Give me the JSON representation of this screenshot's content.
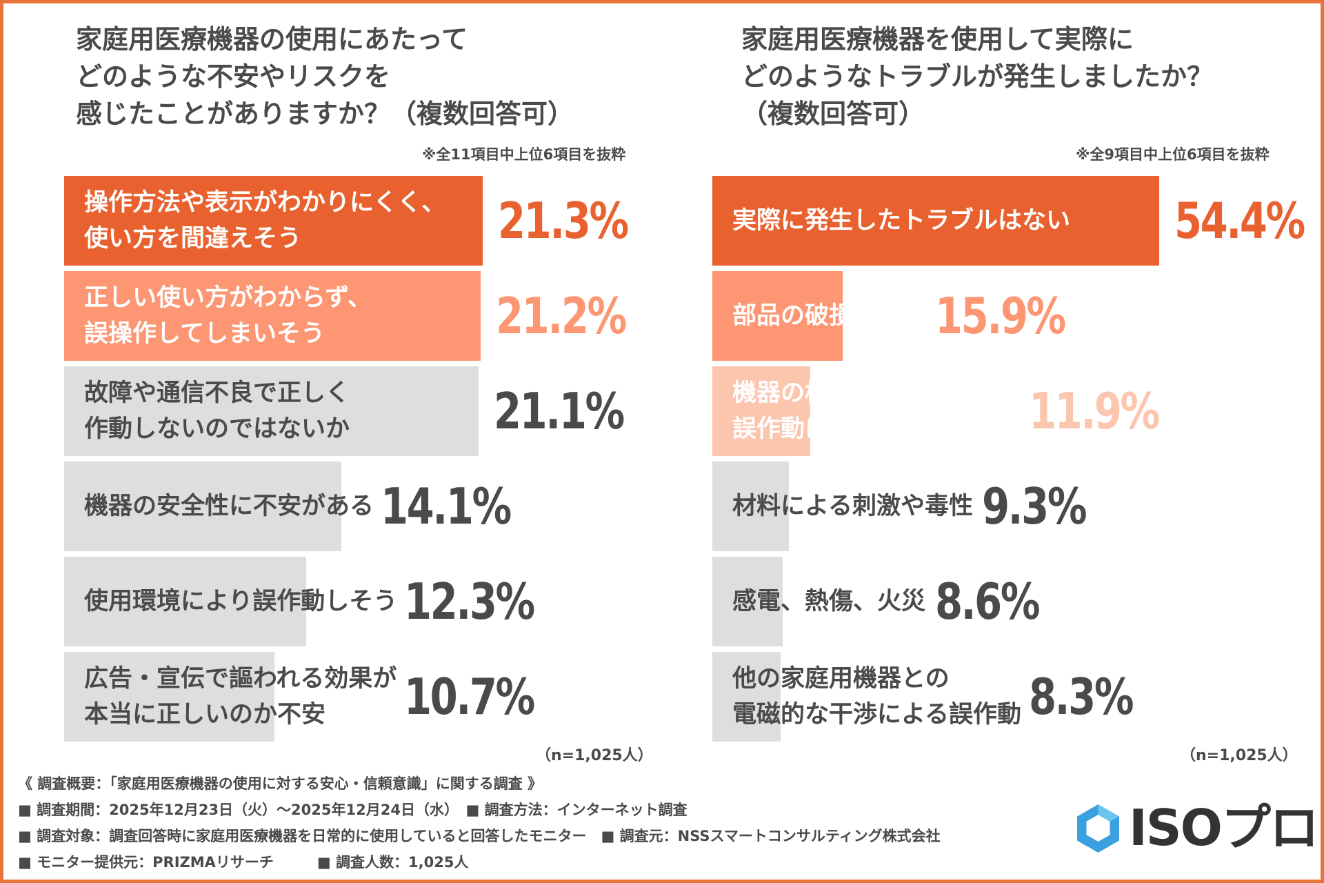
{
  "colors": {
    "primary": "#e8612f",
    "secondary": "#fc9673",
    "tertiary": "#fbc5ae",
    "track": "#dedede",
    "text": "#4a4a4a",
    "border": "#e8743b"
  },
  "charts": {
    "left": {
      "title_lines": [
        "家庭用医療機器の使用にあたって",
        "どのような不安やリスクを",
        "感じたことがありますか？（複数回答可）"
      ],
      "note": "※全11項目中上位6項目を抜粋",
      "n_label": "（n=1,025人）"
    },
    "right": {
      "title_lines": [
        "家庭用医療機器を使用して実際に",
        "どのようなトラブルが発生しましたか？",
        "（複数回答可）"
      ],
      "note": "※全9項目中上位6項目を抜粋",
      "n_label": "（n=1,025人）"
    }
  },
  "chart_data": [
    {
      "type": "bar",
      "orientation": "horizontal",
      "title": "家庭用医療機器の使用にあたってどのような不安やリスクを感じたことがありますか？（複数回答可）",
      "unit": "%",
      "categories": [
        [
          "操作方法や表示がわかりにくく、",
          "使い方を間違えそう"
        ],
        [
          "正しい使い方がわからず、",
          "誤操作してしまいそう"
        ],
        [
          "故障や通信不良で正しく",
          "作動しないのではないか"
        ],
        [
          "機器の安全性に不安がある"
        ],
        [
          "使用環境により誤作動しそう"
        ],
        [
          "広告・宣伝で謳われる効果が",
          "本当に正しいのか不安"
        ]
      ],
      "values": [
        21.3,
        21.2,
        21.1,
        14.1,
        12.3,
        10.7
      ],
      "value_labels": [
        "21.3%",
        "21.2%",
        "21.1%",
        "14.1%",
        "12.3%",
        "10.7%"
      ],
      "bar_colors": [
        "#e8612f",
        "#fc9673",
        "#dedede",
        "#dedede",
        "#dedede",
        "#dedede"
      ],
      "label_colors": [
        "#ffffff",
        "#ffffff",
        "#4a4a4a",
        "#4a4a4a",
        "#4a4a4a",
        "#4a4a4a"
      ],
      "value_colors": [
        "#e8612f",
        "#fc9673",
        "#4a4a4a",
        "#4a4a4a",
        "#4a4a4a",
        "#4a4a4a"
      ]
    },
    {
      "type": "bar",
      "orientation": "horizontal",
      "title": "家庭用医療機器を使用して実際にどのようなトラブルが発生しましたか？（複数回答可）",
      "unit": "%",
      "categories": [
        [
          "実際に発生したトラブルはない"
        ],
        [
          "部品の破損や脱落"
        ],
        [
          "機器の構造上の欠陥や",
          "誤作動による物理的な傷害"
        ],
        [
          "材料による刺激や毒性"
        ],
        [
          "感電、熱傷、火災"
        ],
        [
          "他の家庭用機器との",
          "電磁的な干渉による誤作動"
        ]
      ],
      "values": [
        54.4,
        15.9,
        11.9,
        9.3,
        8.6,
        8.3
      ],
      "value_labels": [
        "54.4%",
        "15.9%",
        "11.9%",
        "9.3%",
        "8.6%",
        "8.3%"
      ],
      "bar_colors": [
        "#e8612f",
        "#fc9673",
        "#fbc5ae",
        "#dedede",
        "#dedede",
        "#dedede"
      ],
      "label_colors": [
        "#ffffff",
        "#ffffff",
        "#ffffff",
        "#4a4a4a",
        "#4a4a4a",
        "#4a4a4a"
      ],
      "value_colors": [
        "#e8612f",
        "#fc9673",
        "#fbc5ae",
        "#4a4a4a",
        "#4a4a4a",
        "#4a4a4a"
      ]
    }
  ],
  "footer": {
    "overview": "《 調査概要：「家庭用医療機器の使用に対する安心・信頼意識」に関する調査 》",
    "lines": [
      "■ 調査期間：2025年12月23日（火）〜2025年12月24日（水）　■ 調査方法：インターネット調査",
      "■ 調査対象：調査回答時に家庭用医療機器を日常的に使用していると回答したモニター　■ 調査元：NSSスマートコンサルティング株式会社",
      "■ モニター提供元：PRIZMAリサーチ　　　■ 調査人数：1,025人"
    ]
  },
  "logo": {
    "text": "ISOプロ",
    "icon": "hexagon-logo-icon",
    "color": "#3ba0e0"
  }
}
